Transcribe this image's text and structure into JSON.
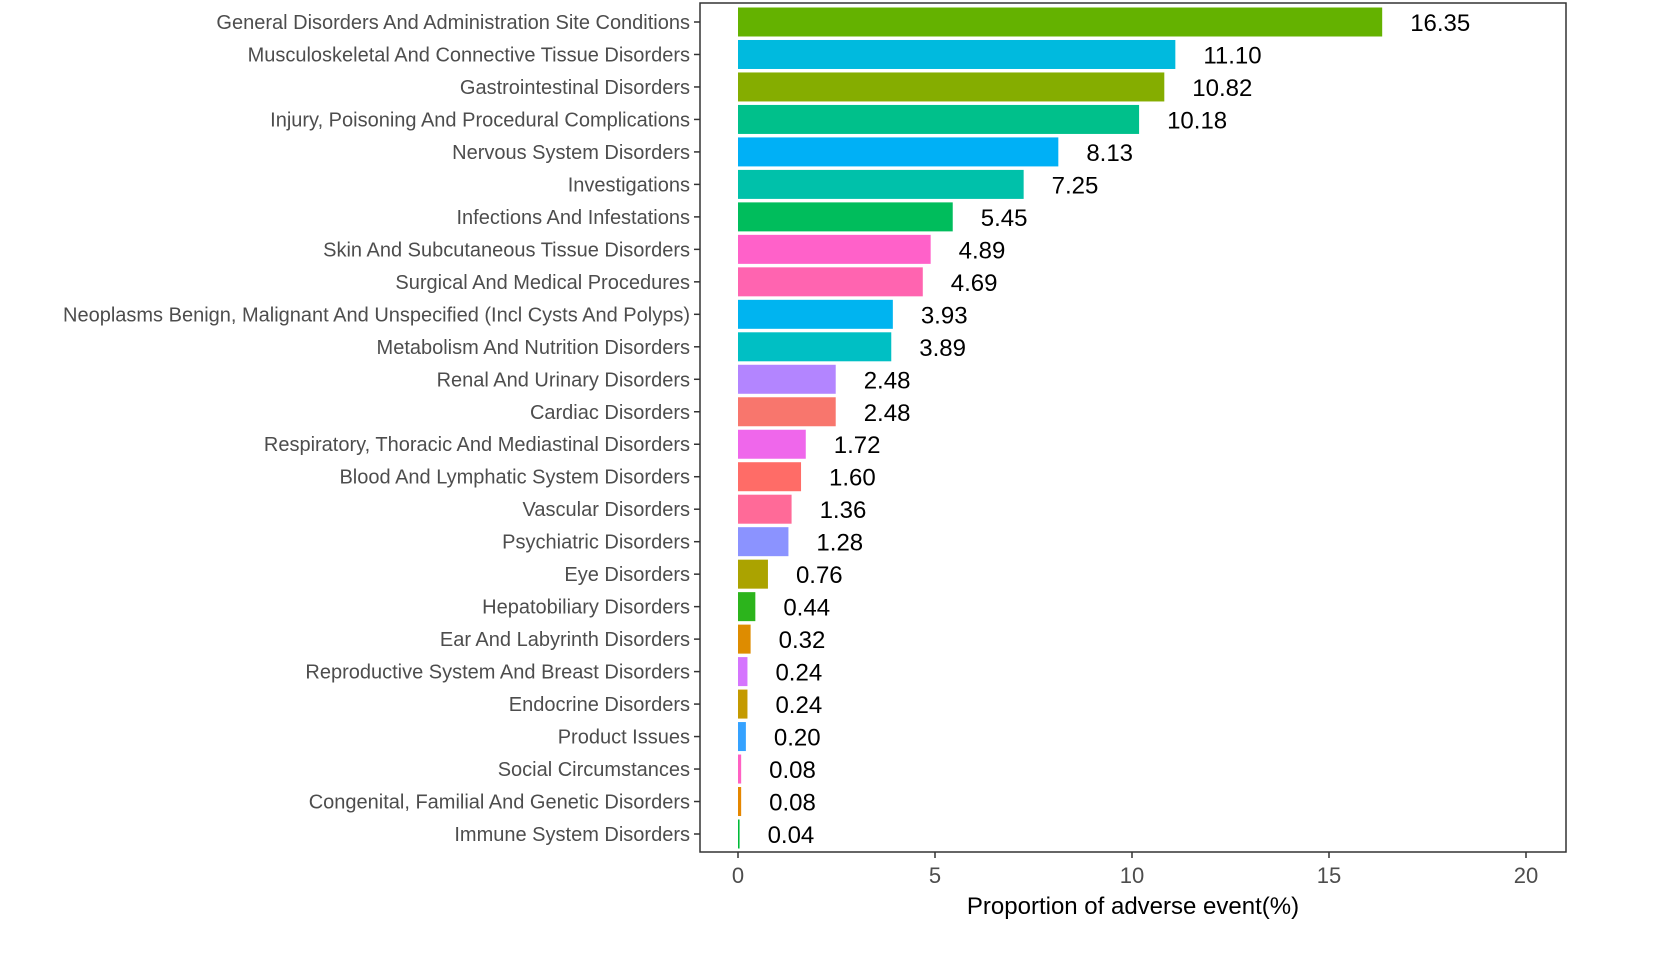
{
  "chart_data": {
    "type": "bar",
    "orientation": "horizontal",
    "title": "",
    "xlabel": "Proportion of adverse event(%)",
    "ylabel": "",
    "xlim": [
      0,
      20
    ],
    "xticks": [
      "0",
      "5",
      "10",
      "15",
      "20"
    ],
    "grid": false,
    "categories": [
      "General Disorders And Administration Site Conditions",
      "Musculoskeletal And Connective Tissue Disorders",
      "Gastrointestinal Disorders",
      "Injury, Poisoning And Procedural Complications",
      "Nervous System Disorders",
      "Investigations",
      "Infections And Infestations",
      "Skin And Subcutaneous Tissue Disorders",
      "Surgical And Medical Procedures",
      "Neoplasms Benign, Malignant And Unspecified (Incl Cysts And Polyps)",
      "Metabolism And Nutrition Disorders",
      "Renal And Urinary Disorders",
      "Cardiac Disorders",
      "Respiratory, Thoracic And Mediastinal Disorders",
      "Blood And Lymphatic System Disorders",
      "Vascular Disorders",
      "Psychiatric Disorders",
      "Eye Disorders",
      "Hepatobiliary Disorders",
      "Ear And Labyrinth Disorders",
      "Reproductive System And Breast Disorders",
      "Endocrine Disorders",
      "Product Issues",
      "Social Circumstances",
      "Congenital, Familial And Genetic Disorders",
      "Immune System Disorders"
    ],
    "values": [
      16.35,
      11.1,
      10.82,
      10.18,
      8.13,
      7.25,
      5.45,
      4.89,
      4.69,
      3.93,
      3.89,
      2.48,
      2.48,
      1.72,
      1.6,
      1.36,
      1.28,
      0.76,
      0.44,
      0.32,
      0.24,
      0.24,
      0.2,
      0.08,
      0.08,
      0.04
    ],
    "value_labels": [
      "16.35",
      "11.10",
      "10.82",
      "10.18",
      "8.13",
      "7.25",
      "5.45",
      "4.89",
      "4.69",
      "3.93",
      "3.89",
      "2.48",
      "2.48",
      "1.72",
      "1.60",
      "1.36",
      "1.28",
      "0.76",
      "0.44",
      "0.32",
      "0.24",
      "0.24",
      "0.20",
      "0.08",
      "0.08",
      "0.04"
    ],
    "colors": [
      "#64B200",
      "#00BADE",
      "#85AD00",
      "#00C08B",
      "#00B0F6",
      "#00C1AA",
      "#00BD5C",
      "#FF61C9",
      "#FF64B0",
      "#00B4F0",
      "#00BFC4",
      "#B385FF",
      "#F8766D",
      "#EF67EB",
      "#FF6C67",
      "#FF6A98",
      "#8B93FF",
      "#ABA300",
      "#2CB41C",
      "#DE8C00",
      "#D575FE",
      "#C49A00",
      "#35A2FF",
      "#FF61C3",
      "#E58700",
      "#00BA38"
    ],
    "legend": "none"
  }
}
